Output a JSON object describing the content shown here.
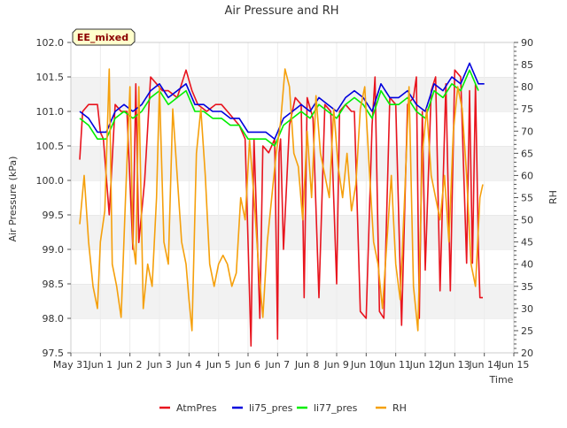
{
  "chart_data": {
    "type": "line",
    "title": "Air Pressure and RH",
    "annotation": "EE_mixed",
    "xlabel": "Time",
    "ylabel": "Air Pressure (kPa)",
    "y2label": "RH",
    "xlim": [
      0,
      15
    ],
    "ylim": [
      97.5,
      102.0
    ],
    "y2lim": [
      20,
      90
    ],
    "grid": "horizontal bands",
    "legend_position": "bottom",
    "x_ticks": [
      {
        "v": 0,
        "label": "May 31"
      },
      {
        "v": 1,
        "label": "Jun 1"
      },
      {
        "v": 2,
        "label": "Jun 2"
      },
      {
        "v": 3,
        "label": "Jun 3"
      },
      {
        "v": 4,
        "label": "Jun 4"
      },
      {
        "v": 5,
        "label": "Jun 5"
      },
      {
        "v": 6,
        "label": "Jun 6"
      },
      {
        "v": 7,
        "label": "Jun 7"
      },
      {
        "v": 8,
        "label": "Jun 8"
      },
      {
        "v": 9,
        "label": "Jun 9"
      },
      {
        "v": 10,
        "label": "Jun 10"
      },
      {
        "v": 11,
        "label": "Jun 11"
      },
      {
        "v": 12,
        "label": "Jun 12"
      },
      {
        "v": 13,
        "label": "Jun 13"
      },
      {
        "v": 14,
        "label": "Jun 14"
      },
      {
        "v": 15,
        "label": "Jun 15"
      }
    ],
    "y_ticks": [
      "97.5",
      "98.0",
      "98.5",
      "99.0",
      "99.5",
      "100.0",
      "100.5",
      "101.0",
      "101.5",
      "102.0"
    ],
    "y2_ticks": [
      "20",
      "25",
      "30",
      "35",
      "40",
      "45",
      "50",
      "55",
      "60",
      "65",
      "70",
      "75",
      "80",
      "85",
      "90"
    ],
    "series": [
      {
        "name": "AtmPres",
        "axis": "left",
        "color": "#e8141e",
        "x": [
          0.3,
          0.4,
          0.6,
          0.9,
          1.0,
          1.1,
          1.3,
          1.5,
          1.7,
          1.9,
          2.1,
          2.2,
          2.3,
          2.5,
          2.7,
          2.9,
          3.1,
          3.3,
          3.6,
          3.9,
          4.1,
          4.3,
          4.6,
          4.9,
          5.1,
          5.3,
          5.5,
          5.7,
          5.9,
          6.1,
          6.15,
          6.2,
          6.4,
          6.5,
          6.7,
          6.9,
          7.0,
          7.05,
          7.1,
          7.2,
          7.4,
          7.6,
          7.8,
          7.9,
          8.0,
          8.2,
          8.4,
          8.6,
          8.8,
          9.0,
          9.1,
          9.3,
          9.5,
          9.6,
          9.8,
          10.0,
          10.2,
          10.3,
          10.45,
          10.6,
          10.8,
          11.0,
          11.2,
          11.4,
          11.6,
          11.7,
          11.8,
          11.9,
          12.0,
          12.2,
          12.35,
          12.5,
          12.7,
          12.85,
          13.0,
          13.2,
          13.4,
          13.5,
          13.6,
          13.7,
          13.8,
          13.85,
          13.95
        ],
        "y": [
          100.3,
          101.0,
          101.1,
          101.1,
          100.7,
          100.6,
          99.5,
          101.1,
          101.0,
          101.0,
          99.0,
          101.4,
          99.1,
          100.0,
          101.5,
          101.4,
          101.3,
          101.3,
          101.2,
          101.6,
          101.3,
          101.1,
          101.0,
          101.1,
          101.1,
          101.0,
          100.9,
          100.8,
          100.6,
          97.6,
          99.2,
          100.6,
          98.0,
          100.5,
          100.4,
          100.6,
          97.7,
          100.4,
          100.6,
          99.0,
          100.8,
          101.2,
          101.1,
          98.3,
          101.2,
          100.9,
          98.3,
          101.1,
          101.0,
          98.5,
          101.0,
          101.1,
          101.0,
          101.0,
          98.1,
          98.0,
          100.8,
          101.5,
          98.1,
          98.0,
          101.2,
          101.1,
          97.9,
          101.1,
          101.2,
          101.5,
          98.0,
          101.0,
          98.7,
          101.3,
          101.5,
          98.4,
          101.4,
          98.4,
          101.6,
          101.5,
          98.8,
          101.3,
          98.8,
          101.4,
          99.0,
          98.3,
          98.3
        ]
      },
      {
        "name": "li75_pres",
        "axis": "left",
        "color": "#0000dd",
        "x": [
          0.3,
          0.6,
          0.9,
          1.2,
          1.5,
          1.8,
          2.1,
          2.4,
          2.7,
          3.0,
          3.3,
          3.6,
          3.9,
          4.2,
          4.5,
          4.8,
          5.1,
          5.4,
          5.7,
          6.0,
          6.3,
          6.6,
          6.9,
          7.2,
          7.5,
          7.8,
          8.1,
          8.4,
          8.7,
          9.0,
          9.3,
          9.6,
          9.9,
          10.2,
          10.5,
          10.8,
          11.1,
          11.4,
          11.7,
          12.0,
          12.3,
          12.6,
          12.9,
          13.2,
          13.5,
          13.8,
          14.0
        ],
        "y": [
          101.0,
          100.9,
          100.7,
          100.7,
          101.0,
          101.1,
          101.0,
          101.1,
          101.3,
          101.4,
          101.2,
          101.3,
          101.4,
          101.1,
          101.1,
          101.0,
          101.0,
          100.9,
          100.9,
          100.7,
          100.7,
          100.7,
          100.6,
          100.9,
          101.0,
          101.1,
          101.0,
          101.2,
          101.1,
          101.0,
          101.2,
          101.3,
          101.2,
          101.0,
          101.4,
          101.2,
          101.2,
          101.3,
          101.1,
          101.0,
          101.4,
          101.3,
          101.5,
          101.4,
          101.7,
          101.4,
          101.4
        ]
      },
      {
        "name": "li77_pres",
        "axis": "left",
        "color": "#00ee00",
        "x": [
          0.3,
          0.6,
          0.9,
          1.2,
          1.5,
          1.8,
          2.1,
          2.4,
          2.7,
          3.0,
          3.3,
          3.6,
          3.9,
          4.2,
          4.5,
          4.8,
          5.1,
          5.4,
          5.7,
          6.0,
          6.3,
          6.6,
          6.9,
          7.2,
          7.5,
          7.8,
          8.1,
          8.4,
          8.7,
          9.0,
          9.3,
          9.6,
          9.9,
          10.2,
          10.5,
          10.8,
          11.1,
          11.4,
          11.7,
          12.0,
          12.3,
          12.6,
          12.9,
          13.2,
          13.5,
          13.8
        ],
        "y": [
          100.9,
          100.8,
          100.6,
          100.6,
          100.9,
          101.0,
          100.9,
          101.0,
          101.2,
          101.3,
          101.1,
          101.2,
          101.3,
          101.0,
          101.0,
          100.9,
          100.9,
          100.8,
          100.8,
          100.6,
          100.6,
          100.6,
          100.5,
          100.8,
          100.9,
          101.0,
          100.9,
          101.1,
          101.0,
          100.9,
          101.1,
          101.2,
          101.1,
          100.9,
          101.3,
          101.1,
          101.1,
          101.2,
          101.0,
          100.9,
          101.3,
          101.2,
          101.4,
          101.3,
          101.6,
          101.3
        ]
      },
      {
        "name": "RH",
        "axis": "right",
        "color": "#f5a00c",
        "x": [
          0.3,
          0.45,
          0.6,
          0.75,
          0.9,
          1.0,
          1.15,
          1.3,
          1.4,
          1.55,
          1.7,
          1.85,
          2.0,
          2.1,
          2.2,
          2.3,
          2.45,
          2.6,
          2.75,
          2.9,
          3.0,
          3.15,
          3.3,
          3.45,
          3.6,
          3.75,
          3.9,
          4.0,
          4.1,
          4.25,
          4.4,
          4.55,
          4.7,
          4.85,
          5.0,
          5.15,
          5.3,
          5.45,
          5.6,
          5.75,
          5.9,
          6.05,
          6.2,
          6.35,
          6.5,
          6.65,
          6.8,
          6.95,
          7.1,
          7.25,
          7.4,
          7.55,
          7.7,
          7.85,
          8.0,
          8.15,
          8.3,
          8.45,
          8.6,
          8.75,
          8.9,
          9.05,
          9.2,
          9.35,
          9.5,
          9.65,
          9.8,
          9.95,
          10.1,
          10.25,
          10.4,
          10.55,
          10.7,
          10.85,
          11.0,
          11.15,
          11.3,
          11.45,
          11.6,
          11.75,
          11.9,
          12.05,
          12.2,
          12.35,
          12.5,
          12.65,
          12.8,
          12.95,
          13.1,
          13.25,
          13.4,
          13.55,
          13.7,
          13.85,
          13.95
        ],
        "y": [
          49,
          60,
          45,
          35,
          30,
          45,
          52,
          84,
          40,
          35,
          28,
          55,
          80,
          45,
          40,
          80,
          30,
          40,
          35,
          55,
          80,
          45,
          40,
          75,
          60,
          45,
          40,
          32,
          25,
          65,
          75,
          60,
          40,
          35,
          40,
          42,
          40,
          35,
          38,
          55,
          50,
          68,
          55,
          40,
          28,
          45,
          55,
          65,
          72,
          84,
          80,
          65,
          62,
          50,
          70,
          55,
          78,
          65,
          60,
          55,
          75,
          62,
          55,
          65,
          52,
          58,
          75,
          80,
          62,
          45,
          40,
          30,
          45,
          60,
          40,
          32,
          55,
          80,
          35,
          25,
          65,
          75,
          60,
          55,
          50,
          60,
          45,
          70,
          80,
          75,
          60,
          40,
          35,
          55,
          58
        ]
      }
    ]
  }
}
